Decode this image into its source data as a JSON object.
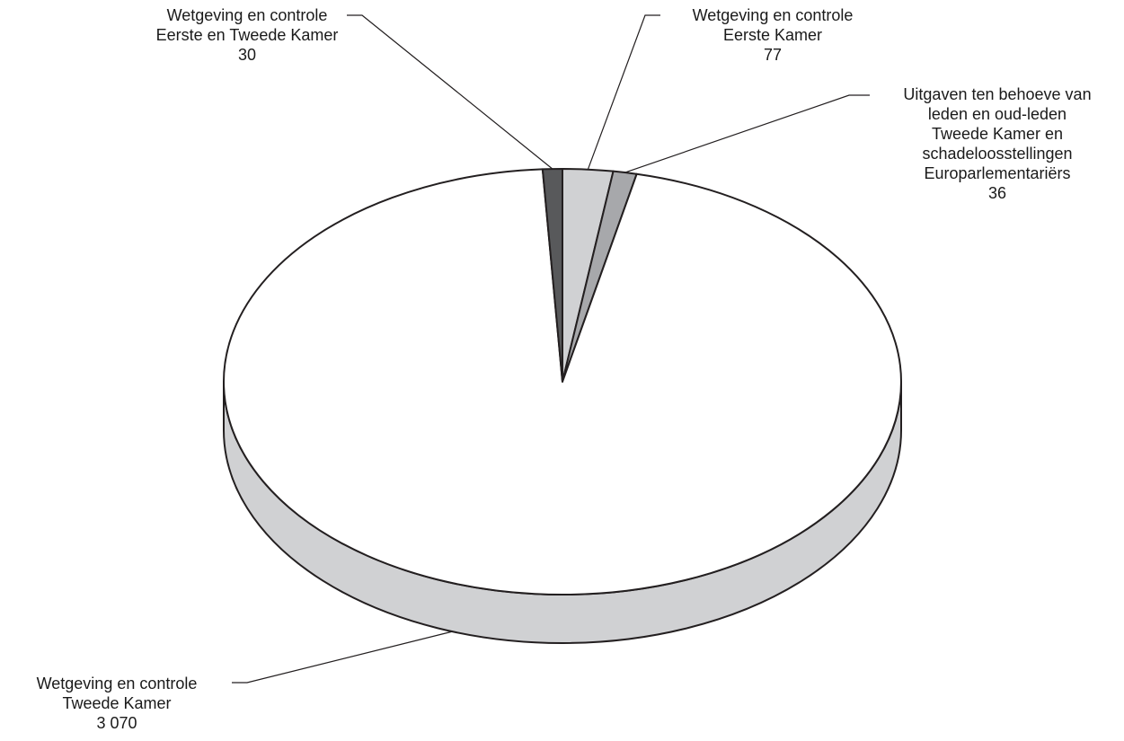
{
  "chart_data": {
    "type": "pie",
    "style": "3d",
    "slices": [
      {
        "key": "ek",
        "lines": [
          "Wetgeving en controle",
          "Eerste Kamer"
        ],
        "value_label": "77",
        "value": 77,
        "color": "#d0d1d3"
      },
      {
        "key": "leden",
        "lines": [
          "Uitgaven ten behoeve van",
          "leden en oud-leden",
          "Tweede Kamer en",
          "schadeloosstellingen",
          "Europarlementariërs"
        ],
        "value_label": "36",
        "value": 36,
        "color": "#a7a8ab"
      },
      {
        "key": "tk",
        "lines": [
          "Wetgeving en controle",
          "Tweede Kamer"
        ],
        "value_label": "3 070",
        "value": 3070,
        "color": "#ffffff",
        "side_color": "#d0d1d3"
      },
      {
        "key": "ektk",
        "lines": [
          "Wetgeving en controle",
          "Eerste en Tweede Kamer"
        ],
        "value_label": "30",
        "value": 30,
        "color": "#58595b"
      }
    ],
    "colors": {
      "outline": "#231f20",
      "leader": "#231f20"
    },
    "legend": "none",
    "grid": false
  }
}
